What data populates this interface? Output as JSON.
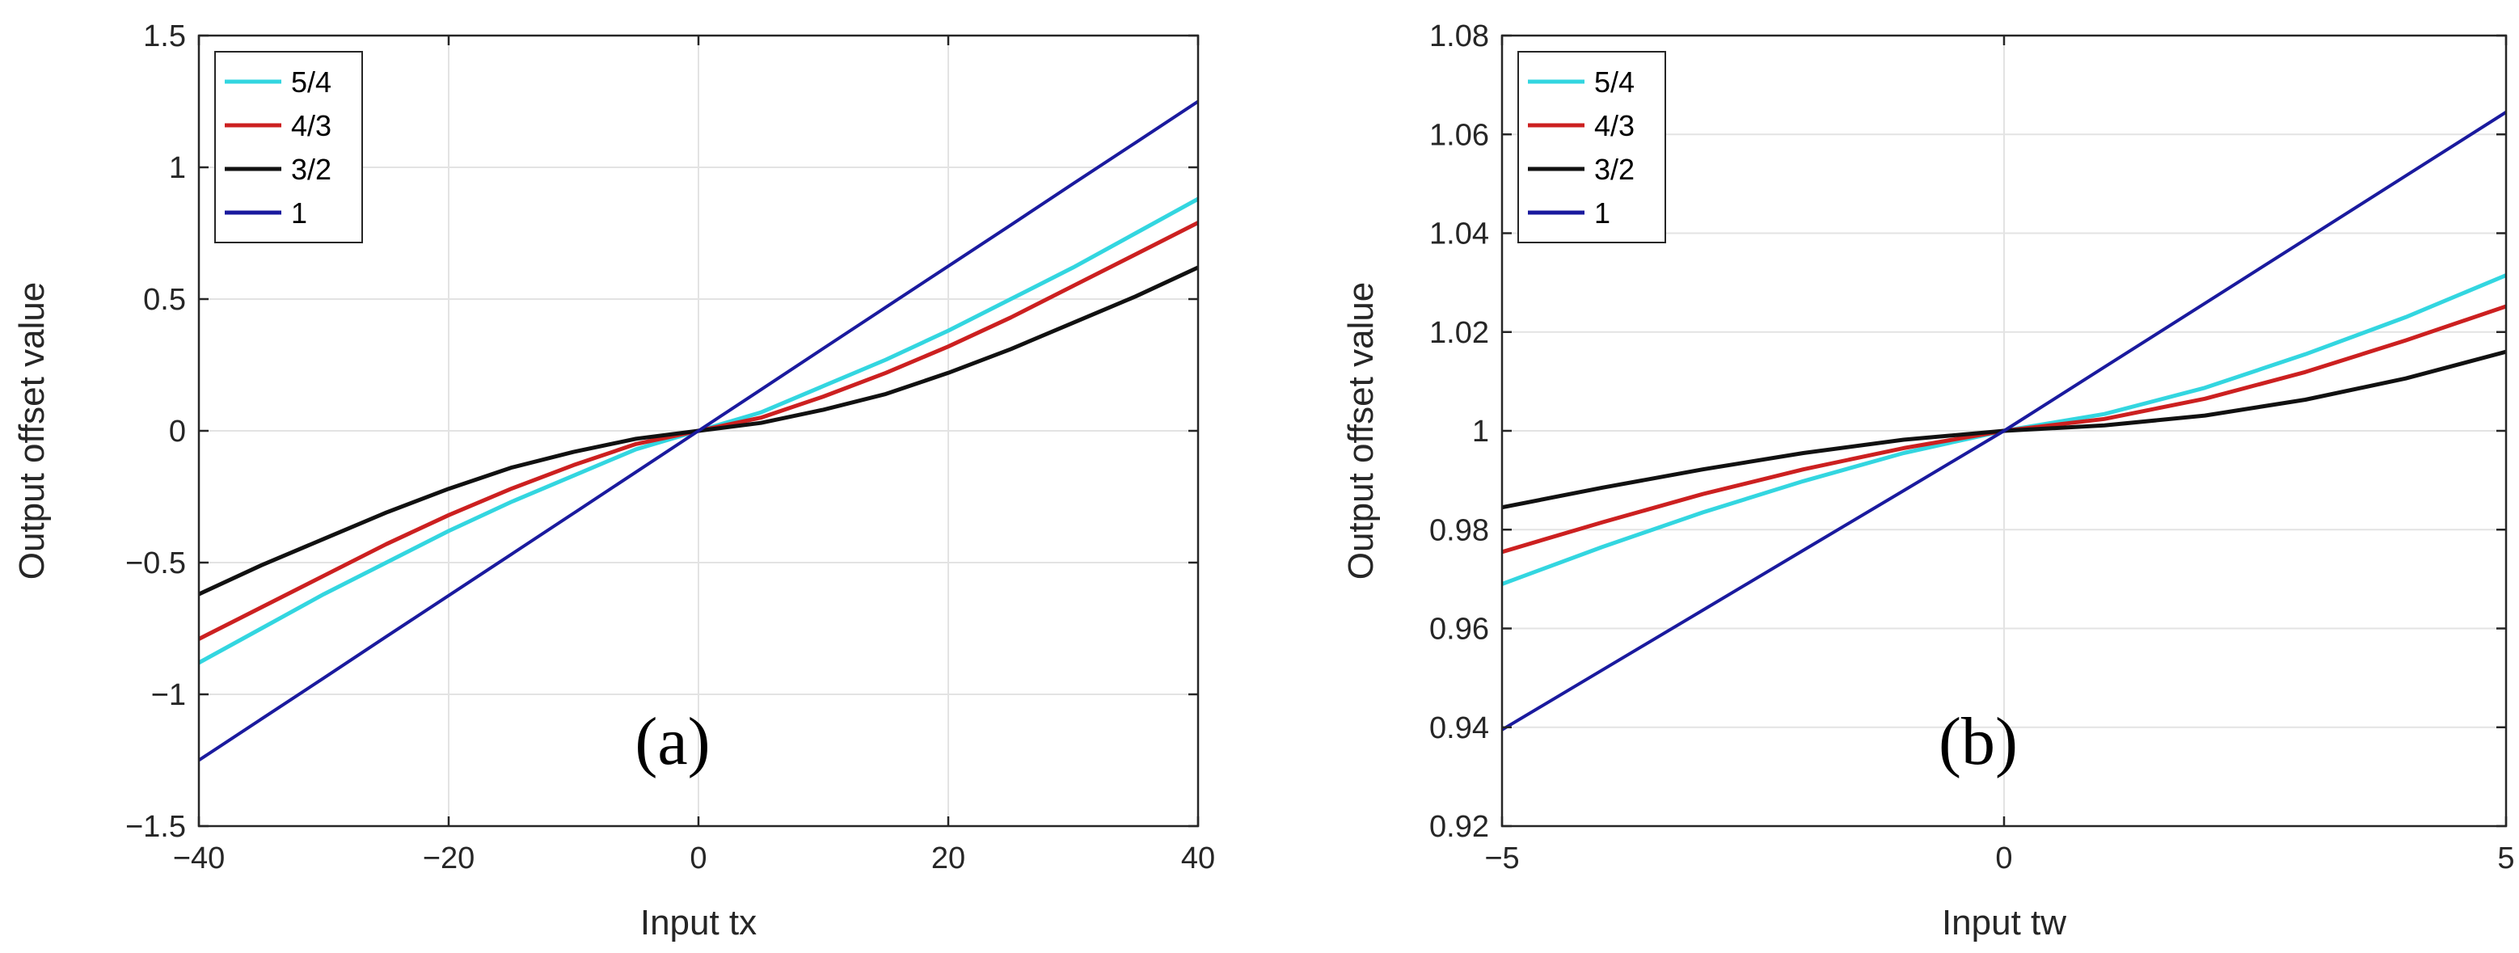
{
  "chart_data": [
    {
      "type": "line",
      "panel_label": "(a)",
      "xlabel": "Input tx",
      "ylabel": "Output offset value",
      "xlim": [
        -40,
        40
      ],
      "ylim": [
        -1.5,
        1.5
      ],
      "xticks": [
        -40,
        -20,
        0,
        20,
        40
      ],
      "xtick_labels": [
        "−40",
        "−20",
        "0",
        "20",
        "40"
      ],
      "yticks": [
        -1.5,
        -1,
        -0.5,
        0,
        0.5,
        1,
        1.5
      ],
      "ytick_labels": [
        "−1.5",
        "−1",
        "−0.5",
        "0",
        "0.5",
        "1",
        "1.5"
      ],
      "grid": true,
      "legend_position": "top-left",
      "x": [
        -40,
        -35,
        -30,
        -25,
        -20,
        -15,
        -10,
        -5,
        0,
        5,
        10,
        15,
        20,
        25,
        30,
        35,
        40
      ],
      "series": [
        {
          "name": "5/4",
          "color": "#33d6e0",
          "values": [
            -0.88,
            -0.75,
            -0.62,
            -0.5,
            -0.38,
            -0.27,
            -0.17,
            -0.07,
            0,
            0.07,
            0.17,
            0.27,
            0.38,
            0.5,
            0.62,
            0.75,
            0.88
          ]
        },
        {
          "name": "4/3",
          "color": "#cc2020",
          "values": [
            -0.79,
            -0.67,
            -0.55,
            -0.43,
            -0.32,
            -0.22,
            -0.13,
            -0.05,
            0,
            0.05,
            0.13,
            0.22,
            0.32,
            0.43,
            0.55,
            0.67,
            0.79
          ]
        },
        {
          "name": "3/2",
          "color": "#111111",
          "values": [
            -0.62,
            -0.51,
            -0.41,
            -0.31,
            -0.22,
            -0.14,
            -0.08,
            -0.03,
            0,
            0.03,
            0.08,
            0.14,
            0.22,
            0.31,
            0.41,
            0.51,
            0.62
          ]
        },
        {
          "name": "1",
          "color": "#1a1a9e",
          "values": [
            -1.25,
            -1.094,
            -0.938,
            -0.781,
            -0.625,
            -0.469,
            -0.313,
            -0.156,
            0,
            0.156,
            0.313,
            0.469,
            0.625,
            0.781,
            0.938,
            1.094,
            1.25
          ]
        }
      ]
    },
    {
      "type": "line",
      "panel_label": "(b)",
      "xlabel": "Input tw",
      "ylabel": "Output offset value",
      "xlim": [
        -5,
        5
      ],
      "ylim": [
        0.92,
        1.08
      ],
      "xticks": [
        -5,
        0,
        5
      ],
      "xtick_labels": [
        "−5",
        "0",
        "5"
      ],
      "yticks": [
        0.92,
        0.94,
        0.96,
        0.98,
        1,
        1.02,
        1.04,
        1.06,
        1.08
      ],
      "ytick_labels": [
        "0.92",
        "0.94",
        "0.96",
        "0.98",
        "1",
        "1.02",
        "1.04",
        "1.06",
        "1.08"
      ],
      "grid": true,
      "legend_position": "top-left",
      "x": [
        -5,
        -4,
        -3,
        -2,
        -1,
        0,
        1,
        2,
        3,
        4,
        5
      ],
      "series": [
        {
          "name": "5/4",
          "color": "#33d6e0",
          "values": [
            0.969,
            0.9765,
            0.9835,
            0.9898,
            0.9955,
            1.0,
            1.0034,
            1.0087,
            1.0155,
            1.023,
            1.0315
          ]
        },
        {
          "name": "4/3",
          "color": "#cc2020",
          "values": [
            0.9755,
            0.9815,
            0.9872,
            0.9922,
            0.9965,
            1.0,
            1.0024,
            1.0065,
            1.0119,
            1.0183,
            1.0252
          ]
        },
        {
          "name": "3/2",
          "color": "#111111",
          "values": [
            0.9845,
            0.9885,
            0.9922,
            0.9955,
            0.9982,
            1.0,
            1.0011,
            1.0031,
            1.0063,
            1.0106,
            1.016
          ]
        },
        {
          "name": "1",
          "color": "#1a1a9e",
          "values": [
            0.9395,
            0.9516,
            0.9637,
            0.9758,
            0.9879,
            1.0,
            1.0129,
            1.0258,
            1.0387,
            1.0516,
            1.0645
          ]
        }
      ]
    }
  ]
}
